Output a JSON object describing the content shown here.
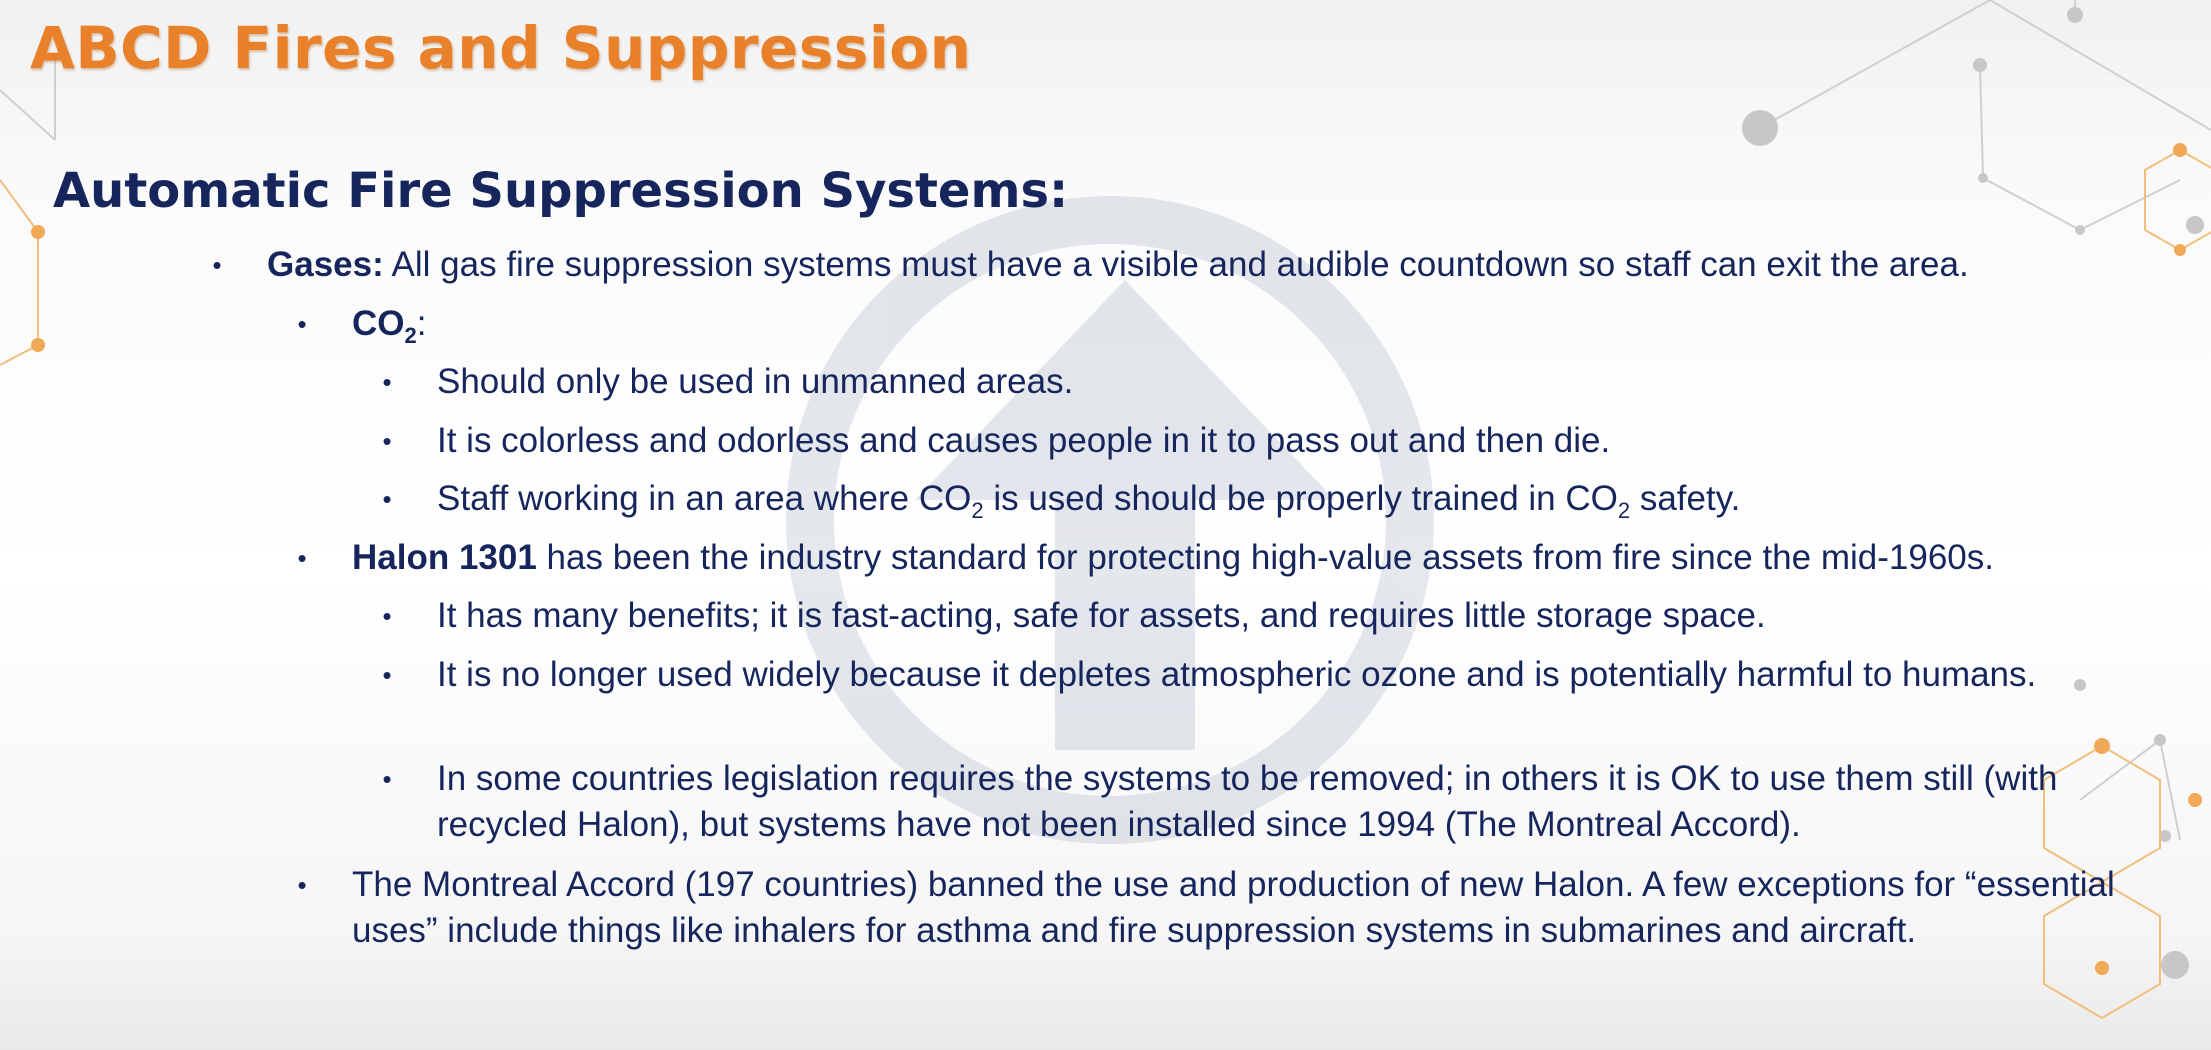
{
  "slide": {
    "title": "ABCD Fires and Suppression",
    "subtitle": "Automatic Fire Suppression Systems:"
  },
  "bullet_char": "•",
  "gases": {
    "label": "Gases:",
    "text": " All gas fire suppression systems must have a visible and audible countdown so staff can exit the area."
  },
  "co2": {
    "label_main": "CO",
    "label_sub": "2",
    "label_suffix": ":",
    "items": [
      "Should only be used in unmanned areas.",
      "It is colorless and odorless and causes people in it to pass out and then die."
    ],
    "staff": {
      "part1": "Staff working in an area where CO",
      "sub1": "2",
      "part2": " is used should be properly trained in CO",
      "sub2": "2",
      "part3": " safety."
    }
  },
  "halon": {
    "label": "Halon 1301",
    "text": " has been the industry standard for protecting high-value assets from fire since the mid-1960s.",
    "items": [
      "It has many benefits; it is fast-acting, safe for assets, and requires little storage space.",
      "It is no longer used widely because it depletes atmospheric ozone and is potentially harmful to humans.",
      "In some countries legislation requires the systems to be removed; in others it is OK to use them still (with recycled Halon), but systems have not been installed since 1994 (The Montreal Accord)."
    ]
  },
  "montreal": {
    "text": "The Montreal Accord (197 countries) banned the use and production of new Halon. A few exceptions for “essential uses” include things like inhalers for asthma and fire suppression systems in submarines and aircraft."
  }
}
